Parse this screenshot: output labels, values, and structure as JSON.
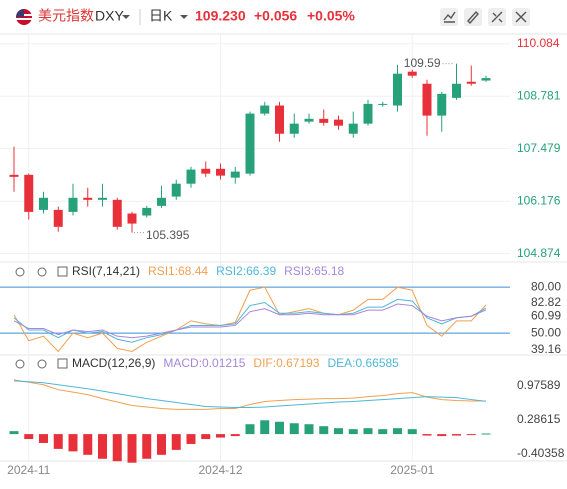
{
  "header": {
    "name": "美元指数",
    "symbol": "DXY",
    "period": "日K",
    "price": "109.230",
    "change": "+0.056",
    "percent": "+0.05%"
  },
  "chart_data": [
    {
      "type": "candlestick",
      "categories": [
        null,
        "2024-11",
        null,
        null,
        null,
        null,
        null,
        null,
        null,
        null,
        null,
        null,
        null,
        null,
        "2024-12",
        null,
        null,
        null,
        null,
        null,
        null,
        null,
        null,
        null,
        null,
        null,
        null,
        "2025-01",
        null,
        null,
        null,
        null,
        null
      ],
      "open": [
        106.83,
        106.83,
        105.96,
        105.96,
        105.91,
        106.26,
        106.21,
        106.21,
        105.87,
        105.82,
        106.06,
        106.29,
        106.61,
        106.98,
        106.98,
        106.76,
        106.86,
        108.35,
        108.55,
        107.85,
        108.15,
        108.22,
        108.2,
        107.85,
        108.1,
        108.57,
        108.55,
        109.39,
        109.09,
        108.3,
        108.74,
        109.14,
        109.17
      ],
      "high": [
        107.53,
        106.86,
        106.41,
        106.04,
        106.61,
        106.51,
        106.61,
        106.26,
        105.91,
        106.06,
        106.56,
        106.71,
        107.03,
        107.16,
        107.11,
        107.03,
        108.4,
        108.64,
        108.64,
        108.35,
        108.35,
        108.45,
        108.3,
        108.4,
        108.69,
        108.64,
        109.563,
        109.44,
        109.19,
        108.89,
        109.59,
        109.54,
        109.29
      ],
      "low": [
        106.41,
        105.72,
        105.87,
        105.42,
        105.82,
        106.04,
        106.04,
        105.47,
        105.395,
        105.77,
        106.01,
        106.21,
        106.51,
        106.78,
        106.71,
        106.61,
        106.81,
        108.3,
        107.65,
        107.75,
        108.1,
        108.05,
        107.95,
        107.75,
        108.05,
        108.52,
        108.4,
        109.24,
        107.8,
        107.9,
        108.69,
        109.04,
        109.14
      ],
      "close": [
        106.78,
        105.91,
        106.26,
        105.54,
        106.26,
        106.21,
        106.26,
        105.54,
        105.62,
        106.01,
        106.26,
        106.61,
        106.96,
        106.86,
        106.81,
        106.91,
        108.35,
        108.55,
        107.85,
        108.1,
        108.22,
        108.12,
        108.05,
        108.1,
        108.59,
        108.59,
        109.34,
        109.29,
        108.3,
        108.84,
        109.09,
        109.09,
        109.23
      ],
      "up_color": "#26a17a",
      "down_color": "#e8303a",
      "ylim": [
        104.6,
        110.3
      ],
      "yticks": [
        110.084,
        108.781,
        107.479,
        106.176,
        104.874
      ],
      "grid": true
    },
    {
      "type": "line",
      "title": "RSI(7,14,21)",
      "series": [
        {
          "name": "RSI1:68.44",
          "color": "#f0a050",
          "values": [
            62,
            45,
            48,
            38,
            50,
            47,
            50,
            40,
            38,
            44,
            48,
            52,
            58,
            56,
            55,
            57,
            78,
            80,
            62,
            64,
            66,
            63,
            62,
            65,
            72,
            72,
            80,
            78,
            55,
            48,
            58,
            58,
            68.44
          ]
        },
        {
          "name": "RSI2:66.39",
          "color": "#4fb6d8",
          "values": [
            60,
            52,
            52,
            47,
            52,
            50,
            51,
            46,
            44,
            47,
            49,
            52,
            55,
            55,
            55,
            56,
            68,
            70,
            63,
            63,
            64,
            63,
            62,
            63,
            67,
            67,
            72,
            71,
            60,
            56,
            60,
            61,
            66.39
          ]
        },
        {
          "name": "RSI3:65.18",
          "color": "#a586dc",
          "values": [
            58,
            53,
            53,
            49,
            52,
            51,
            52,
            48,
            47,
            48,
            50,
            52,
            54,
            54,
            54,
            55,
            64,
            66,
            62,
            62,
            63,
            62,
            62,
            62,
            65,
            65,
            69,
            68,
            61,
            58,
            60,
            61,
            65.18
          ]
        }
      ],
      "ylim": [
        37,
        86
      ],
      "yticks": [
        {
          "value": 80,
          "label": "80.00"
        },
        82.82,
        60.99,
        {
          "value": 50,
          "label": "50.00"
        },
        39.16
      ],
      "hlines": [
        80,
        50
      ],
      "hline_color": "#3a8fd8"
    },
    {
      "type": "macd",
      "title": "MACD(12,26,9)",
      "series": [
        {
          "name": "MACD:0.01215",
          "color": "#a586dc",
          "bars": true,
          "values": [
            0.06,
            -0.1,
            -0.18,
            -0.3,
            -0.35,
            -0.42,
            -0.5,
            -0.55,
            -0.58,
            -0.5,
            -0.42,
            -0.32,
            -0.2,
            -0.1,
            -0.07,
            -0.04,
            0.2,
            0.28,
            0.25,
            0.22,
            0.2,
            0.16,
            0.12,
            0.1,
            0.12,
            0.1,
            0.12,
            0.1,
            -0.03,
            -0.04,
            -0.03,
            -0.02,
            0.01215
          ]
        },
        {
          "name": "DIF:0.67193",
          "color": "#f0a050",
          "values": [
            1.1,
            1.05,
            1.0,
            0.9,
            0.85,
            0.8,
            0.72,
            0.65,
            0.58,
            0.55,
            0.52,
            0.5,
            0.5,
            0.5,
            0.52,
            0.52,
            0.6,
            0.66,
            0.68,
            0.7,
            0.71,
            0.72,
            0.72,
            0.73,
            0.76,
            0.78,
            0.82,
            0.84,
            0.75,
            0.7,
            0.68,
            0.67,
            0.67193
          ]
        },
        {
          "name": "DEA:0.66585",
          "color": "#4fb6d8",
          "values": [
            1.08,
            1.06,
            1.04,
            1.0,
            0.96,
            0.92,
            0.87,
            0.82,
            0.77,
            0.72,
            0.68,
            0.64,
            0.6,
            0.56,
            0.55,
            0.54,
            0.54,
            0.55,
            0.57,
            0.59,
            0.61,
            0.63,
            0.65,
            0.66,
            0.68,
            0.7,
            0.72,
            0.74,
            0.76,
            0.75,
            0.74,
            0.7,
            0.66585
          ]
        }
      ],
      "ylim": [
        -0.6,
        1.2
      ],
      "yticks": [
        0.97589,
        0.28615,
        -0.40358
      ],
      "bar_up_color": "#26a17a",
      "bar_down_color": "#e8303a"
    }
  ]
}
